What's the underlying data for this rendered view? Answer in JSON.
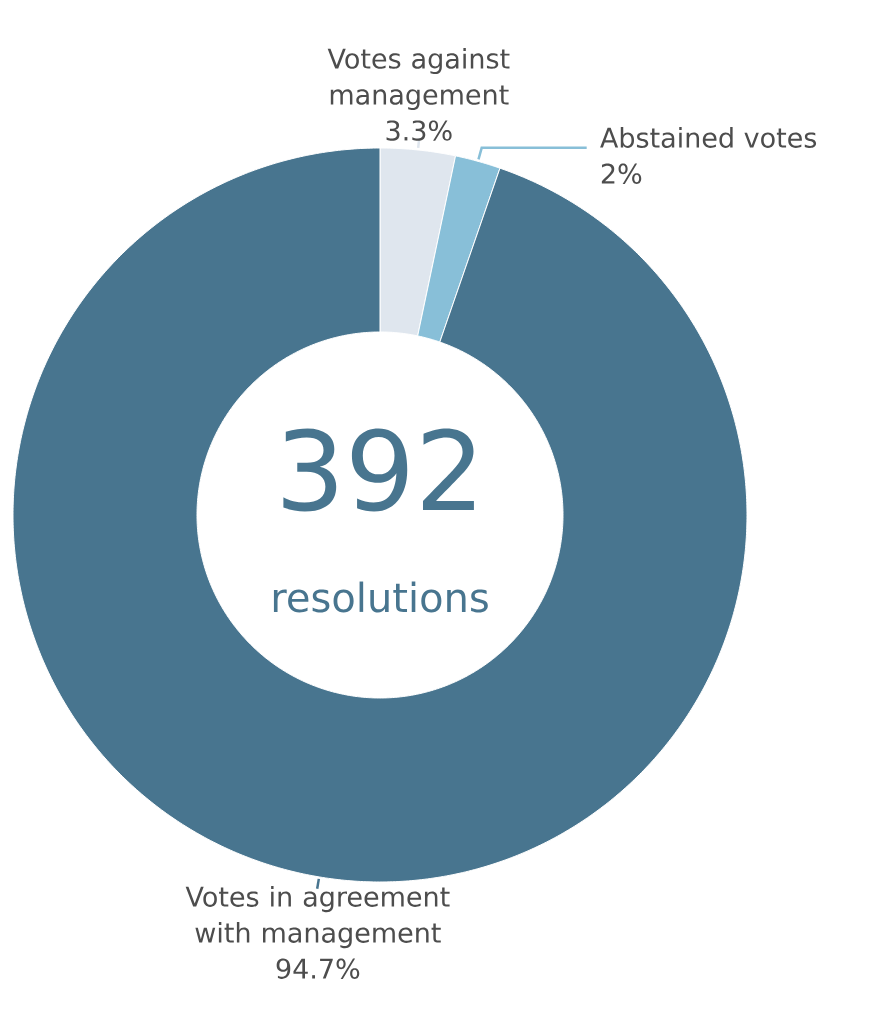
{
  "chart_data": {
    "type": "donut",
    "categories": [
      "Votes against management",
      "Abstained votes",
      "Votes in agreement with management"
    ],
    "values": [
      3.3,
      2,
      94.7
    ],
    "colors": [
      "#dfe6ee",
      "#88bfd8",
      "#48758f"
    ],
    "value_labels": [
      "3.3%",
      "2%",
      "94.7%"
    ],
    "annotations": [
      "392",
      "resolutions"
    ]
  }
}
